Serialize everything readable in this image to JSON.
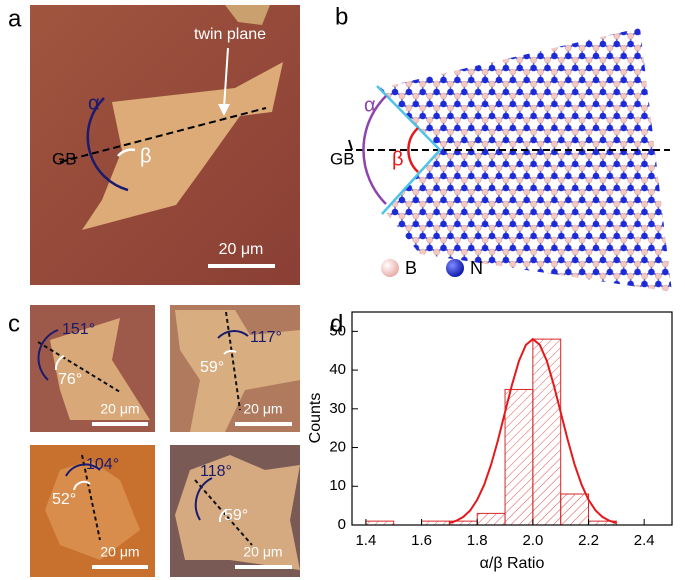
{
  "panels": {
    "a": {
      "label": "a",
      "annotation": "twin plane",
      "alpha": "α",
      "beta": "β",
      "gb": "GB",
      "scale_bar": "20 μm"
    },
    "b": {
      "label": "b",
      "alpha": "α",
      "beta": "β",
      "gb": "GB",
      "legend": [
        "B",
        "N"
      ]
    },
    "c": {
      "label": "c",
      "images": [
        {
          "alpha": "151°",
          "beta": "76°",
          "scale_bar": "20 μm"
        },
        {
          "alpha": "117°",
          "beta": "59°",
          "scale_bar": "20 μm"
        },
        {
          "alpha": "104°",
          "beta": "52°",
          "scale_bar": "20 μm"
        },
        {
          "alpha": "118°",
          "beta": "59°",
          "scale_bar": "20 μm"
        }
      ]
    },
    "d": {
      "label": "d"
    }
  },
  "chart_data": {
    "type": "histogram",
    "xlabel": "α/β Ratio",
    "ylabel": "Counts",
    "bins": [
      1.4,
      1.5,
      1.6,
      1.7,
      1.8,
      1.9,
      2.0,
      2.1,
      2.2,
      2.3
    ],
    "values": [
      1,
      0,
      1,
      1,
      3,
      35,
      48,
      8,
      1
    ],
    "color": "#d62728",
    "fit": {
      "x": [
        1.7,
        1.725,
        1.75,
        1.775,
        1.8,
        1.825,
        1.85,
        1.875,
        1.9,
        1.925,
        1.95,
        1.975,
        2.0,
        2.025,
        2.05,
        2.075,
        2.1,
        2.125,
        2.15,
        2.175,
        2.2,
        2.225,
        2.25,
        2.275,
        2.3
      ],
      "values": [
        0.5,
        1.1,
        2.1,
        3.8,
        6.5,
        10.4,
        15.6,
        22.0,
        29.1,
        36.2,
        42.4,
        46.5,
        48,
        46.5,
        42.4,
        36.2,
        29.1,
        22.0,
        15.6,
        10.4,
        6.5,
        3.8,
        2.1,
        1.1,
        0.5
      ],
      "color": "#e31a1c"
    },
    "xlim": [
      1.35,
      2.5
    ],
    "ylim": [
      0,
      55
    ],
    "xticks": [
      1.4,
      1.6,
      1.8,
      {
        "value": 2,
        "label": "2.0"
      },
      2.2,
      2.4
    ],
    "yticks": [
      0,
      10,
      20,
      30,
      40,
      50
    ]
  }
}
